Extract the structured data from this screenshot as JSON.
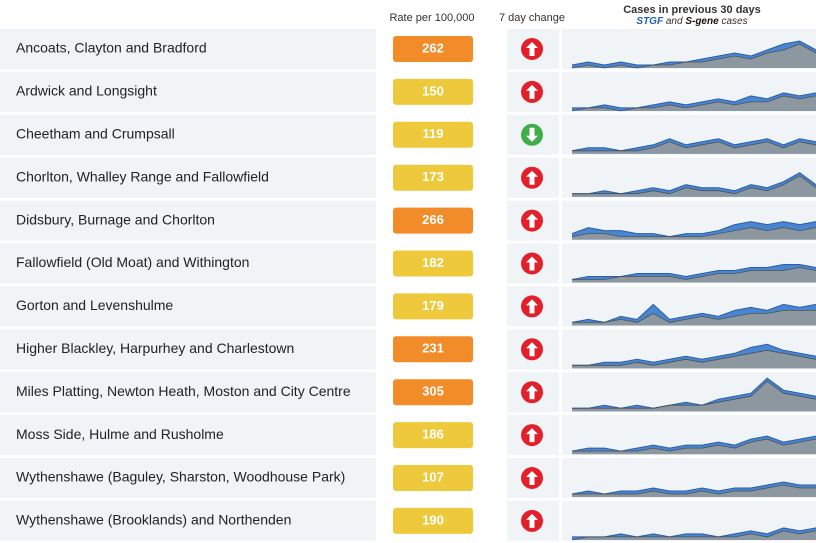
{
  "header": {
    "rate": "Rate per 100,000",
    "change": "7 day change",
    "sparkline_title": "Cases in previous 30 days",
    "sparkline_subtitle": [
      "STGF",
      "and",
      "S-gene",
      "cases"
    ]
  },
  "spark_max": 12,
  "series_colors": {
    "stgf": "#4a86d0",
    "sgene": "#8d979f"
  },
  "rows": [
    {
      "name": "Ancoats, Clayton and Bradford",
      "rate": "262",
      "color": "#f28c28",
      "change": "up",
      "stgf": [
        1,
        2,
        1,
        2,
        1,
        1,
        2,
        2,
        3,
        4,
        5,
        4,
        6,
        8,
        9,
        6
      ],
      "sgene": [
        0,
        1,
        0,
        1,
        0,
        1,
        1,
        2,
        2,
        3,
        4,
        3,
        5,
        6,
        8,
        5
      ]
    },
    {
      "name": "Ardwick and Longsight",
      "rate": "150",
      "color": "#efc93c",
      "change": "up",
      "stgf": [
        1,
        1,
        2,
        1,
        1,
        2,
        3,
        2,
        3,
        4,
        3,
        5,
        4,
        6,
        5,
        6
      ],
      "sgene": [
        0,
        1,
        1,
        0,
        1,
        1,
        2,
        1,
        2,
        3,
        2,
        3,
        3,
        5,
        4,
        5
      ]
    },
    {
      "name": "Cheetham and Crumpsall",
      "rate": "119",
      "color": "#efc93c",
      "change": "down",
      "stgf": [
        1,
        2,
        2,
        1,
        2,
        3,
        5,
        3,
        4,
        5,
        3,
        4,
        5,
        3,
        5,
        4
      ],
      "sgene": [
        1,
        1,
        1,
        1,
        1,
        2,
        4,
        2,
        3,
        4,
        2,
        3,
        4,
        2,
        4,
        3
      ]
    },
    {
      "name": "Chorlton, Whalley Range and Fallowfield",
      "rate": "173",
      "color": "#efc93c",
      "change": "up",
      "stgf": [
        1,
        1,
        2,
        1,
        2,
        3,
        2,
        4,
        3,
        3,
        2,
        4,
        3,
        5,
        8,
        4
      ],
      "sgene": [
        1,
        1,
        1,
        1,
        1,
        2,
        1,
        3,
        2,
        2,
        1,
        3,
        2,
        4,
        7,
        3
      ]
    },
    {
      "name": "Didsbury, Burnage and Chorlton",
      "rate": "266",
      "color": "#f28c28",
      "change": "up",
      "stgf": [
        2,
        4,
        3,
        3,
        2,
        2,
        1,
        2,
        2,
        3,
        5,
        6,
        5,
        6,
        5,
        6
      ],
      "sgene": [
        1,
        2,
        2,
        1,
        1,
        1,
        1,
        1,
        1,
        2,
        3,
        4,
        3,
        4,
        3,
        4
      ]
    },
    {
      "name": "Fallowfield (Old Moat) and Withington",
      "rate": "182",
      "color": "#efc93c",
      "change": "up",
      "stgf": [
        1,
        2,
        2,
        2,
        3,
        3,
        3,
        2,
        3,
        4,
        4,
        5,
        5,
        6,
        6,
        5
      ],
      "sgene": [
        1,
        1,
        1,
        2,
        2,
        2,
        2,
        1,
        2,
        3,
        3,
        4,
        4,
        4,
        5,
        4
      ]
    },
    {
      "name": "Gorton and Levenshulme",
      "rate": "179",
      "color": "#efc93c",
      "change": "up",
      "stgf": [
        1,
        2,
        1,
        3,
        2,
        7,
        2,
        3,
        4,
        3,
        5,
        6,
        5,
        7,
        6,
        7
      ],
      "sgene": [
        1,
        1,
        1,
        2,
        1,
        4,
        1,
        2,
        3,
        2,
        3,
        4,
        4,
        5,
        5,
        5
      ]
    },
    {
      "name": "Higher Blackley, Harpurhey and Charlestown",
      "rate": "231",
      "color": "#f28c28",
      "change": "up",
      "stgf": [
        1,
        1,
        2,
        2,
        3,
        2,
        3,
        4,
        3,
        4,
        5,
        7,
        8,
        6,
        5,
        4
      ],
      "sgene": [
        1,
        1,
        1,
        1,
        2,
        1,
        2,
        3,
        2,
        3,
        4,
        5,
        6,
        5,
        4,
        3
      ]
    },
    {
      "name": "Miles Platting, Newton Heath, Moston and City Centre",
      "rate": "305",
      "color": "#f28c28",
      "change": "up",
      "stgf": [
        1,
        1,
        2,
        1,
        2,
        1,
        2,
        3,
        2,
        4,
        5,
        6,
        11,
        7,
        6,
        5
      ],
      "sgene": [
        1,
        1,
        1,
        1,
        1,
        1,
        2,
        2,
        2,
        3,
        4,
        5,
        10,
        6,
        5,
        4
      ]
    },
    {
      "name": "Moss Side, Hulme and Rusholme",
      "rate": "186",
      "color": "#efc93c",
      "change": "up",
      "stgf": [
        1,
        2,
        2,
        1,
        2,
        3,
        2,
        3,
        3,
        4,
        3,
        5,
        6,
        4,
        5,
        6
      ],
      "sgene": [
        1,
        1,
        1,
        1,
        1,
        2,
        1,
        2,
        2,
        3,
        2,
        4,
        5,
        3,
        4,
        5
      ]
    },
    {
      "name": "Wythenshawe (Baguley, Sharston, Woodhouse Park)",
      "rate": "107",
      "color": "#efc93c",
      "change": "up",
      "stgf": [
        1,
        2,
        1,
        2,
        2,
        3,
        2,
        2,
        3,
        2,
        3,
        3,
        4,
        5,
        4,
        4
      ],
      "sgene": [
        1,
        1,
        1,
        1,
        1,
        2,
        1,
        1,
        2,
        1,
        2,
        2,
        3,
        4,
        3,
        3
      ]
    },
    {
      "name": "Wythenshawe (Brooklands) and Northenden",
      "rate": "190",
      "color": "#efc93c",
      "change": "up",
      "stgf": [
        1,
        1,
        1,
        2,
        1,
        2,
        1,
        2,
        2,
        1,
        2,
        3,
        2,
        4,
        3,
        4
      ],
      "sgene": [
        0,
        1,
        1,
        1,
        1,
        1,
        1,
        1,
        1,
        1,
        1,
        2,
        1,
        3,
        2,
        3
      ]
    }
  ]
}
